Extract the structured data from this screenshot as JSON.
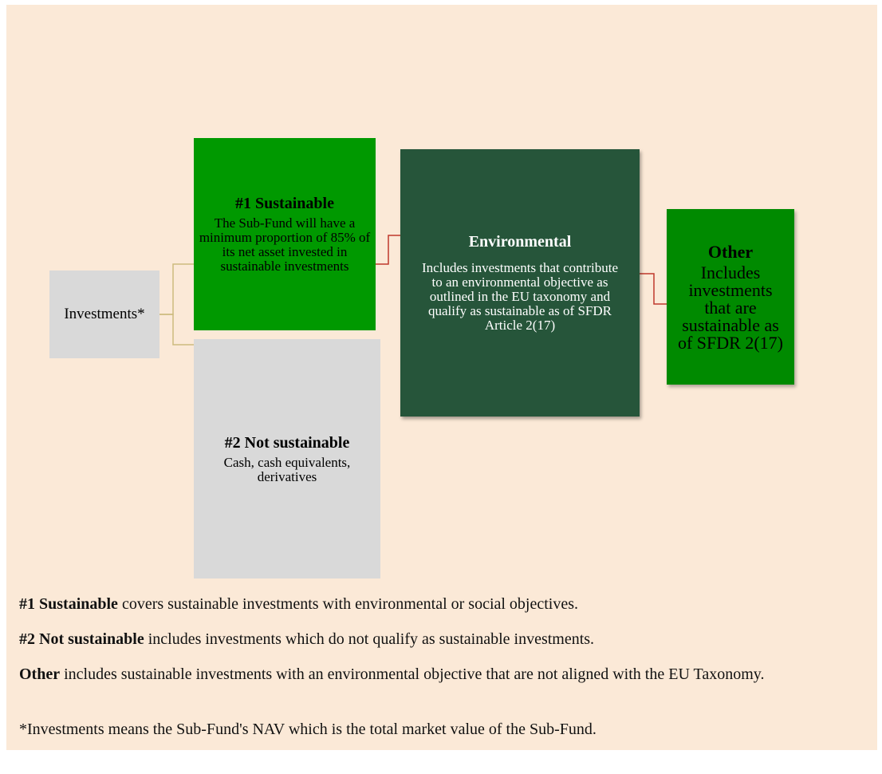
{
  "nodes": [
    {
      "label": "Investments*"
    },
    {
      "label": "#1 Sustainable",
      "text": "The Sub-Fund will have a minimum proportion of 85%  of its net asset invested in sustainable investments"
    },
    {
      "label": "#2 Not sustainable",
      "text": "Cash, cash equivalents, derivatives"
    },
    {
      "label": "Environmental",
      "text": "Includes investments that contribute to an environmental objective as outlined in the EU taxonomy and qualify as sustainable as of SFDR Article 2(17)"
    },
    {
      "label": "Other",
      "text": "Includes investments that are sustainable as of SFDR 2(17)"
    }
  ],
  "notes": [
    {
      "bold": "#1 Sustainable",
      "text": "covers sustainable investments with environmental or social objectives."
    },
    {
      "bold": "#2 Not sustainable",
      "text": "includes investments which do not qualify as sustainable investments."
    },
    {
      "bold": "Other",
      "text": "includes sustainable investments with an environmental objective that are not aligned with the EU Taxonomy."
    }
  ],
  "footnote": "*Investments means the Sub-Fund's NAV which is the total market value of the Sub-Fund."
}
